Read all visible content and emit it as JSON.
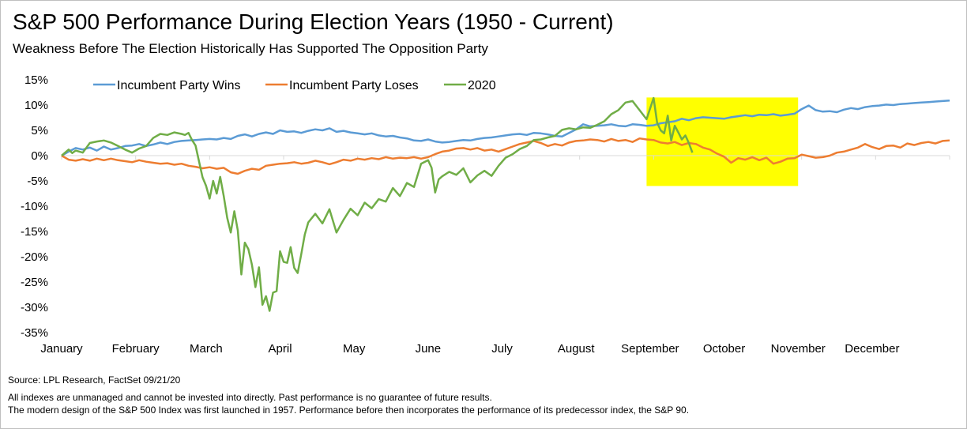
{
  "header": {
    "title": "S&P 500 Performance During Election Years (1950 - Current)",
    "subtitle": "Weakness Before The Election Historically Has Supported The Opposition Party"
  },
  "footer": {
    "source": "Source: LPL Research,  FactSet 09/21/20",
    "disclaimer_1": "All indexes are unmanaged  and cannot be invested  into directly. Past performance  is no guarantee  of future results.",
    "disclaimer_2": "The modern design of the S&P 500 Index was first launched in 1957. Performance  before then incorporates the performance  of its  predecessor index, the S&P 90."
  },
  "colors": {
    "incumbent_wins": "#5b9bd5",
    "incumbent_loses": "#ed7d31",
    "year_2020": "#70ad47",
    "highlight": "#ffff00"
  },
  "chart_data": {
    "type": "line",
    "title": "S&P 500 Performance During Election Years (1950 - Current)",
    "xlabel": "",
    "ylabel": "",
    "ylim": [
      -35,
      15
    ],
    "y_ticks": [
      15,
      10,
      5,
      0,
      -5,
      -10,
      -15,
      -20,
      -25,
      -30,
      -35
    ],
    "y_tick_labels": [
      "15%",
      "10%",
      "5%",
      "0%",
      "-5%",
      "-10%",
      "-15%",
      "-20%",
      "-25%",
      "-30%",
      "-35%"
    ],
    "x_unit": "trading day of year (0-252)",
    "xlim": [
      0,
      252
    ],
    "month_labels": [
      "January",
      "February",
      "March",
      "April",
      "May",
      "June",
      "July",
      "August",
      "September",
      "October",
      "November",
      "December"
    ],
    "month_label_positions": [
      0,
      21,
      41,
      62,
      83,
      104,
      125,
      146,
      167,
      188,
      209,
      230
    ],
    "legend_position": "top-left",
    "highlight_region": {
      "x_start": 166,
      "x_end": 209,
      "y_start": -6,
      "y_end": 11.5
    },
    "series": [
      {
        "name": "Incumbent Party Wins",
        "x": [
          0,
          2,
          4,
          6,
          8,
          10,
          12,
          14,
          16,
          18,
          20,
          22,
          24,
          26,
          28,
          30,
          32,
          34,
          36,
          38,
          40,
          42,
          44,
          46,
          48,
          50,
          52,
          54,
          56,
          58,
          60,
          62,
          64,
          66,
          68,
          70,
          72,
          74,
          76,
          78,
          80,
          82,
          84,
          86,
          88,
          90,
          92,
          94,
          96,
          98,
          100,
          102,
          104,
          106,
          108,
          110,
          112,
          114,
          116,
          118,
          120,
          122,
          124,
          126,
          128,
          130,
          132,
          134,
          136,
          138,
          140,
          142,
          144,
          146,
          148,
          150,
          152,
          154,
          156,
          158,
          160,
          162,
          164,
          166,
          168,
          170,
          172,
          174,
          176,
          178,
          180,
          182,
          184,
          186,
          188,
          190,
          192,
          194,
          196,
          198,
          200,
          202,
          204,
          206,
          208,
          210,
          212,
          214,
          216,
          218,
          220,
          222,
          224,
          226,
          228,
          230,
          232,
          234,
          236,
          238,
          240,
          242,
          244,
          246,
          248,
          250,
          252
        ],
        "values": [
          0,
          0.8,
          1.5,
          1.2,
          1.6,
          1.0,
          1.8,
          1.2,
          1.5,
          1.9,
          2.0,
          2.3,
          1.9,
          2.2,
          2.6,
          2.3,
          2.7,
          2.9,
          3.0,
          3.1,
          3.2,
          3.3,
          3.2,
          3.5,
          3.3,
          3.9,
          4.2,
          3.8,
          4.3,
          4.6,
          4.3,
          5.0,
          4.7,
          4.8,
          4.5,
          4.9,
          5.2,
          5.0,
          5.4,
          4.7,
          4.9,
          4.6,
          4.4,
          4.2,
          4.4,
          4.0,
          3.8,
          3.9,
          3.6,
          3.4,
          3.0,
          2.9,
          3.2,
          2.8,
          2.6,
          2.7,
          2.9,
          3.1,
          3.0,
          3.3,
          3.5,
          3.6,
          3.8,
          4.0,
          4.2,
          4.3,
          4.1,
          4.5,
          4.4,
          4.2,
          3.9,
          3.8,
          4.5,
          5.2,
          6.2,
          5.8,
          5.9,
          6.0,
          6.2,
          5.9,
          5.8,
          6.2,
          6.1,
          5.9,
          6.0,
          6.4,
          6.6,
          6.8,
          7.3,
          7.0,
          7.4,
          7.6,
          7.5,
          7.4,
          7.3,
          7.6,
          7.8,
          8.0,
          7.8,
          8.1,
          8.0,
          8.2,
          7.9,
          8.1,
          8.3,
          9.2,
          9.9,
          9.0,
          8.7,
          8.8,
          8.6,
          9.1,
          9.4,
          9.2,
          9.6,
          9.8,
          9.9,
          10.1,
          10.0,
          10.2,
          10.3,
          10.4,
          10.5,
          10.6,
          10.7,
          10.8,
          10.9
        ]
      },
      {
        "name": "Incumbent Party Loses",
        "x": [
          0,
          2,
          4,
          6,
          8,
          10,
          12,
          14,
          16,
          18,
          20,
          22,
          24,
          26,
          28,
          30,
          32,
          34,
          36,
          38,
          40,
          42,
          44,
          46,
          48,
          50,
          52,
          54,
          56,
          58,
          60,
          62,
          64,
          66,
          68,
          70,
          72,
          74,
          76,
          78,
          80,
          82,
          84,
          86,
          88,
          90,
          92,
          94,
          96,
          98,
          100,
          102,
          104,
          106,
          108,
          110,
          112,
          114,
          116,
          118,
          120,
          122,
          124,
          126,
          128,
          130,
          132,
          134,
          136,
          138,
          140,
          142,
          144,
          146,
          148,
          150,
          152,
          154,
          156,
          158,
          160,
          162,
          164,
          166,
          168,
          170,
          172,
          174,
          176,
          178,
          180,
          182,
          184,
          186,
          188,
          190,
          192,
          194,
          196,
          198,
          200,
          202,
          204,
          206,
          208,
          210,
          212,
          214,
          216,
          218,
          220,
          222,
          224,
          226,
          228,
          230,
          232,
          234,
          236,
          238,
          240,
          242,
          244,
          246,
          248,
          250,
          252
        ],
        "values": [
          0,
          -0.8,
          -1.0,
          -0.7,
          -1.0,
          -0.6,
          -0.9,
          -0.6,
          -0.9,
          -1.1,
          -1.3,
          -0.9,
          -1.2,
          -1.4,
          -1.6,
          -1.5,
          -1.8,
          -1.6,
          -2.0,
          -2.2,
          -2.5,
          -2.3,
          -2.6,
          -2.4,
          -3.3,
          -3.6,
          -3.0,
          -2.6,
          -2.8,
          -2.0,
          -1.8,
          -1.6,
          -1.5,
          -1.3,
          -1.6,
          -1.4,
          -1.0,
          -1.3,
          -1.7,
          -1.3,
          -0.8,
          -1.0,
          -0.6,
          -0.8,
          -0.5,
          -0.7,
          -0.3,
          -0.6,
          -0.4,
          -0.5,
          -0.3,
          -0.6,
          -0.3,
          0.3,
          0.8,
          1.0,
          1.4,
          1.5,
          1.2,
          1.5,
          1.0,
          1.2,
          0.8,
          1.3,
          1.8,
          2.3,
          2.6,
          2.9,
          2.5,
          1.9,
          2.3,
          2.0,
          2.6,
          2.9,
          3.0,
          3.2,
          3.1,
          2.8,
          3.3,
          2.9,
          3.1,
          2.7,
          3.4,
          3.2,
          3.1,
          2.6,
          2.4,
          2.7,
          2.1,
          2.5,
          2.3,
          1.6,
          1.2,
          0.4,
          -0.2,
          -1.4,
          -0.5,
          -0.8,
          -0.3,
          -0.9,
          -0.4,
          -1.6,
          -1.2,
          -0.6,
          -0.5,
          0.2,
          -0.1,
          -0.4,
          -0.3,
          0.0,
          0.6,
          0.8,
          1.2,
          1.6,
          2.3,
          1.7,
          1.3,
          1.9,
          2.0,
          1.6,
          2.4,
          2.1,
          2.5,
          2.7,
          2.4,
          2.9,
          3.0
        ]
      },
      {
        "name": "2020",
        "x": [
          0,
          2,
          3,
          4,
          6,
          8,
          10,
          12,
          14,
          16,
          18,
          20,
          22,
          24,
          26,
          28,
          30,
          32,
          34,
          35,
          36,
          37,
          38,
          39,
          40,
          41,
          42,
          43,
          44,
          45,
          46,
          47,
          48,
          49,
          50,
          51,
          52,
          53,
          54,
          55,
          56,
          57,
          58,
          59,
          60,
          61,
          62,
          63,
          64,
          65,
          66,
          67,
          68,
          69,
          70,
          72,
          74,
          76,
          78,
          80,
          82,
          84,
          86,
          88,
          90,
          92,
          94,
          96,
          98,
          100,
          102,
          104,
          105,
          106,
          107,
          108,
          110,
          112,
          114,
          116,
          118,
          120,
          122,
          124,
          126,
          128,
          130,
          132,
          134,
          136,
          138,
          140,
          142,
          144,
          146,
          148,
          150,
          152,
          154,
          156,
          158,
          160,
          162,
          164,
          166,
          168,
          169,
          170,
          171,
          172,
          173,
          174,
          175,
          176,
          177,
          178,
          179
        ],
        "values": [
          0,
          1.2,
          0.5,
          1.0,
          0.6,
          2.5,
          2.8,
          3.0,
          2.6,
          1.9,
          1.2,
          0.6,
          1.4,
          1.9,
          3.5,
          4.3,
          4.1,
          4.6,
          4.3,
          4.1,
          4.5,
          3.1,
          2.0,
          -1.2,
          -4.3,
          -6.0,
          -8.5,
          -5.0,
          -7.5,
          -4.2,
          -8.0,
          -12.3,
          -15.2,
          -11.0,
          -14.8,
          -23.5,
          -17.2,
          -18.5,
          -21.6,
          -26.0,
          -22.1,
          -29.5,
          -27.8,
          -30.7,
          -27.1,
          -26.8,
          -18.9,
          -21.0,
          -21.2,
          -18.1,
          -22.2,
          -23.2,
          -19.5,
          -15.6,
          -13.2,
          -11.5,
          -13.4,
          -10.6,
          -15.2,
          -12.7,
          -10.5,
          -11.8,
          -9.3,
          -10.4,
          -8.6,
          -9.1,
          -6.4,
          -8.0,
          -5.4,
          -6.2,
          -1.6,
          -0.9,
          -2.4,
          -7.3,
          -4.7,
          -4.1,
          -3.2,
          -3.8,
          -2.5,
          -5.3,
          -3.9,
          -3.0,
          -4.0,
          -2.0,
          -0.4,
          0.3,
          1.3,
          1.9,
          3.1,
          3.2,
          3.6,
          3.9,
          5.1,
          5.4,
          5.2,
          5.6,
          5.5,
          6.1,
          6.8,
          8.2,
          9.0,
          10.5,
          10.8,
          9.0,
          7.2,
          11.4,
          6.5,
          5.0,
          4.4,
          7.9,
          3.0,
          5.9,
          4.6,
          3.2,
          4.0,
          2.5,
          0.6
        ]
      }
    ]
  }
}
